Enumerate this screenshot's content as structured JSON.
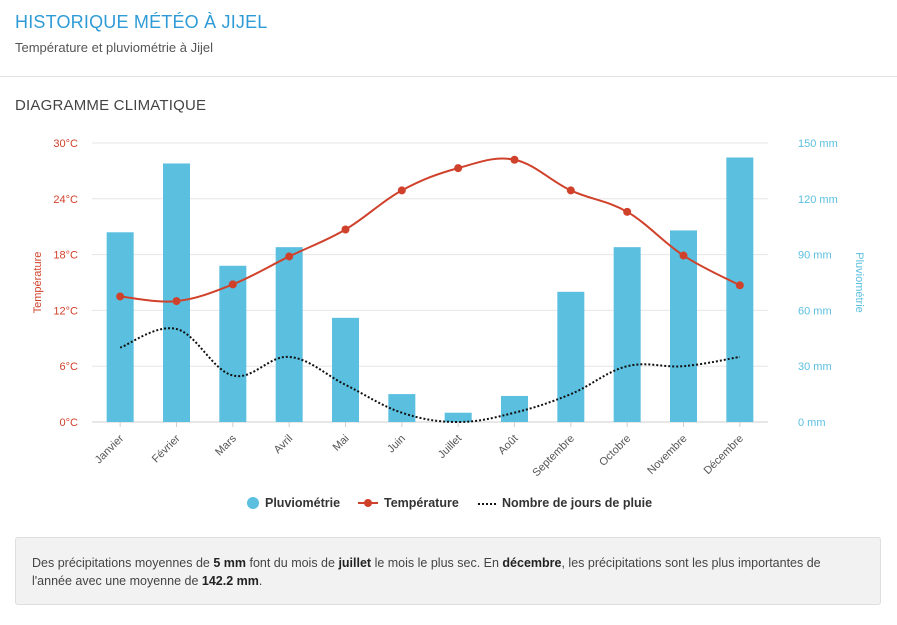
{
  "header": {
    "title": "HISTORIQUE MÉTÉO À JIJEL",
    "subtitle": "Température et pluviométrie à Jijel"
  },
  "section": {
    "title": "DIAGRAMME CLIMATIQUE"
  },
  "colors": {
    "precip": "#5bbfdf",
    "temp": "#d0412b",
    "rain_days": "#111111",
    "title": "#2f9bd6"
  },
  "chart_data": {
    "type": "bar",
    "categories": [
      "Janvier",
      "Février",
      "Mars",
      "Avril",
      "Mai",
      "Juin",
      "Juillet",
      "Août",
      "Septembre",
      "Octobre",
      "Novembre",
      "Décembre"
    ],
    "series": [
      {
        "name": "Pluviométrie",
        "type": "bar",
        "axis": "right",
        "unit": "mm",
        "values": [
          102,
          139,
          84,
          94,
          56,
          15,
          5,
          14,
          70,
          94,
          103,
          142.2
        ]
      },
      {
        "name": "Température",
        "type": "line",
        "axis": "left",
        "unit": "°C",
        "values": [
          13.5,
          13.0,
          14.8,
          17.8,
          20.7,
          24.9,
          27.3,
          28.2,
          24.9,
          22.6,
          17.9,
          14.7
        ]
      },
      {
        "name": "Nombre de jours de pluie",
        "type": "line",
        "style": "dotted",
        "axis": "left",
        "values": [
          8,
          10,
          5,
          7,
          4,
          1,
          0,
          1,
          3,
          6,
          6,
          7
        ]
      }
    ],
    "y_left": {
      "label": "Température",
      "min": 0,
      "max": 30,
      "ticks": [
        "0°C",
        "6°C",
        "12°C",
        "18°C",
        "24°C",
        "30°C"
      ]
    },
    "y_right": {
      "label": "Pluviométrie",
      "min": 0,
      "max": 150,
      "ticks": [
        "0 mm",
        "30 mm",
        "60 mm",
        "90 mm",
        "120 mm",
        "150 mm"
      ]
    },
    "grid": true,
    "legend_position": "bottom"
  },
  "summary": {
    "t1": "Des précipitations moyennes de ",
    "b1": "5 mm",
    "t2": " font du mois de ",
    "b2": "juillet",
    "t3": " le mois le plus sec. En ",
    "b3": "décembre",
    "t4": ", les précipitations sont les plus importantes de l'année avec une moyenne de ",
    "b4": "142.2 mm",
    "t5": "."
  }
}
